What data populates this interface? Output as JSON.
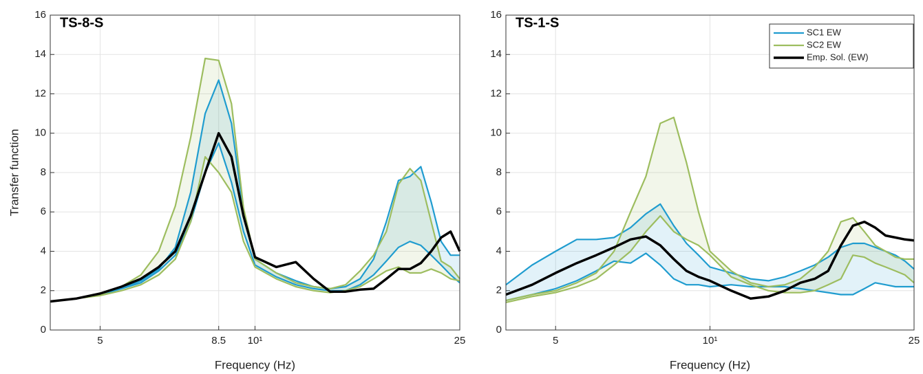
{
  "chart_data": [
    {
      "type": "band-line",
      "title": "TS-8-S",
      "xlabel": "Frequency (Hz)",
      "ylabel": "Transfer function",
      "xscale": "log",
      "xlim": [
        4,
        25
      ],
      "ylim": [
        0,
        16
      ],
      "grid": true,
      "xticks": [
        5,
        8.5,
        {
          "value": 10,
          "label": "10¹"
        },
        25
      ],
      "yticks": [
        0,
        2,
        4,
        6,
        8,
        10,
        12,
        14,
        16
      ],
      "x": [
        4,
        4.5,
        5,
        5.5,
        6,
        6.5,
        7,
        7.5,
        8,
        8.5,
        9,
        9.5,
        10,
        11,
        12,
        13,
        14,
        15,
        16,
        17,
        18,
        19,
        20,
        21,
        22,
        23,
        24,
        25
      ],
      "series": [
        {
          "color": "#1f9ccf",
          "upper": [
            1.45,
            1.6,
            1.8,
            2.1,
            2.5,
            3.1,
            4.2,
            7.0,
            11.0,
            12.7,
            10.5,
            6.0,
            3.6,
            2.9,
            2.5,
            2.2,
            2.1,
            2.2,
            2.6,
            3.6,
            5.5,
            7.6,
            7.8,
            8.3,
            6.5,
            4.5,
            3.8,
            3.8
          ],
          "lower": [
            1.45,
            1.6,
            1.8,
            2.1,
            2.4,
            3.0,
            3.8,
            5.5,
            8.0,
            9.5,
            7.5,
            5.0,
            3.3,
            2.7,
            2.3,
            2.1,
            2.0,
            2.0,
            2.3,
            2.8,
            3.5,
            4.2,
            4.5,
            4.3,
            3.8,
            3.3,
            2.8,
            2.4
          ]
        },
        {
          "color": "#9dbd5f",
          "upper": [
            1.45,
            1.6,
            1.8,
            2.2,
            2.8,
            4.0,
            6.3,
            9.8,
            13.8,
            13.7,
            11.5,
            6.2,
            3.6,
            2.9,
            2.4,
            2.2,
            2.1,
            2.3,
            3.0,
            3.8,
            5.0,
            7.4,
            8.2,
            7.6,
            5.5,
            3.5,
            3.2,
            2.6
          ],
          "lower": [
            1.45,
            1.6,
            1.75,
            2.0,
            2.3,
            2.8,
            3.6,
            5.5,
            8.8,
            8.0,
            7.0,
            4.5,
            3.2,
            2.6,
            2.2,
            2.0,
            1.9,
            2.0,
            2.2,
            2.6,
            3.0,
            3.2,
            2.9,
            2.9,
            3.1,
            2.9,
            2.6,
            2.5
          ]
        },
        {
          "color": "#000000",
          "values": [
            1.45,
            1.6,
            1.85,
            2.2,
            2.6,
            3.2,
            4.0,
            5.8,
            8.0,
            10.0,
            8.8,
            5.8,
            3.7,
            3.2,
            3.45,
            2.6,
            1.95,
            1.95,
            2.05,
            2.1,
            2.6,
            3.1,
            3.1,
            3.4,
            4.0,
            4.7,
            5.0,
            4.0
          ]
        }
      ]
    },
    {
      "type": "band-line",
      "title": "TS-1-S",
      "xlabel": "Frequency (Hz)",
      "xscale": "log",
      "xlim": [
        4,
        25
      ],
      "ylim": [
        0,
        16
      ],
      "grid": true,
      "legend": "northeast",
      "xticks": [
        5,
        {
          "value": 10,
          "label": "10¹"
        },
        25
      ],
      "yticks": [
        0,
        2,
        4,
        6,
        8,
        10,
        12,
        14,
        16
      ],
      "x": [
        4,
        4.5,
        5,
        5.5,
        6,
        6.5,
        7,
        7.5,
        8,
        8.5,
        9,
        9.5,
        10,
        11,
        12,
        13,
        14,
        15,
        16,
        17,
        18,
        19,
        20,
        21,
        22,
        23,
        24,
        25
      ],
      "series": [
        {
          "name": "SC1 EW",
          "color": "#1f9ccf",
          "upper": [
            2.3,
            3.3,
            4.0,
            4.6,
            4.6,
            4.7,
            5.2,
            5.9,
            6.4,
            5.3,
            4.4,
            3.8,
            3.2,
            2.9,
            2.6,
            2.5,
            2.7,
            3.0,
            3.3,
            3.7,
            4.2,
            4.4,
            4.4,
            4.2,
            4.0,
            3.8,
            3.5,
            3.1
          ],
          "lower": [
            1.5,
            1.8,
            2.1,
            2.5,
            3.0,
            3.5,
            3.4,
            3.9,
            3.3,
            2.6,
            2.3,
            2.3,
            2.2,
            2.3,
            2.2,
            2.2,
            2.2,
            2.1,
            2.0,
            1.9,
            1.8,
            1.8,
            2.1,
            2.4,
            2.3,
            2.2,
            2.2,
            2.2
          ]
        },
        {
          "name": "SC2 EW",
          "color": "#9dbd5f",
          "upper": [
            1.5,
            1.8,
            2.0,
            2.4,
            2.9,
            4.0,
            6.0,
            7.8,
            10.5,
            10.8,
            8.5,
            6.0,
            4.0,
            3.0,
            2.4,
            2.2,
            2.3,
            2.6,
            3.2,
            4.0,
            5.5,
            5.7,
            5.0,
            4.3,
            4.0,
            3.7,
            3.6,
            3.6
          ],
          "lower": [
            1.4,
            1.7,
            1.9,
            2.2,
            2.6,
            3.3,
            4.0,
            5.0,
            5.8,
            5.0,
            4.6,
            4.3,
            3.8,
            2.7,
            2.3,
            2.0,
            1.9,
            1.9,
            2.0,
            2.3,
            2.6,
            3.8,
            3.7,
            3.4,
            3.2,
            3.0,
            2.8,
            2.4
          ]
        },
        {
          "name": "Emp. Sol. (EW)",
          "color": "#000000",
          "values": [
            1.8,
            2.3,
            2.9,
            3.4,
            3.8,
            4.2,
            4.6,
            4.75,
            4.3,
            3.6,
            3.0,
            2.7,
            2.5,
            2.0,
            1.6,
            1.7,
            2.0,
            2.4,
            2.6,
            3.0,
            4.3,
            5.3,
            5.5,
            5.2,
            4.8,
            4.7,
            4.6,
            4.55
          ]
        }
      ]
    }
  ]
}
